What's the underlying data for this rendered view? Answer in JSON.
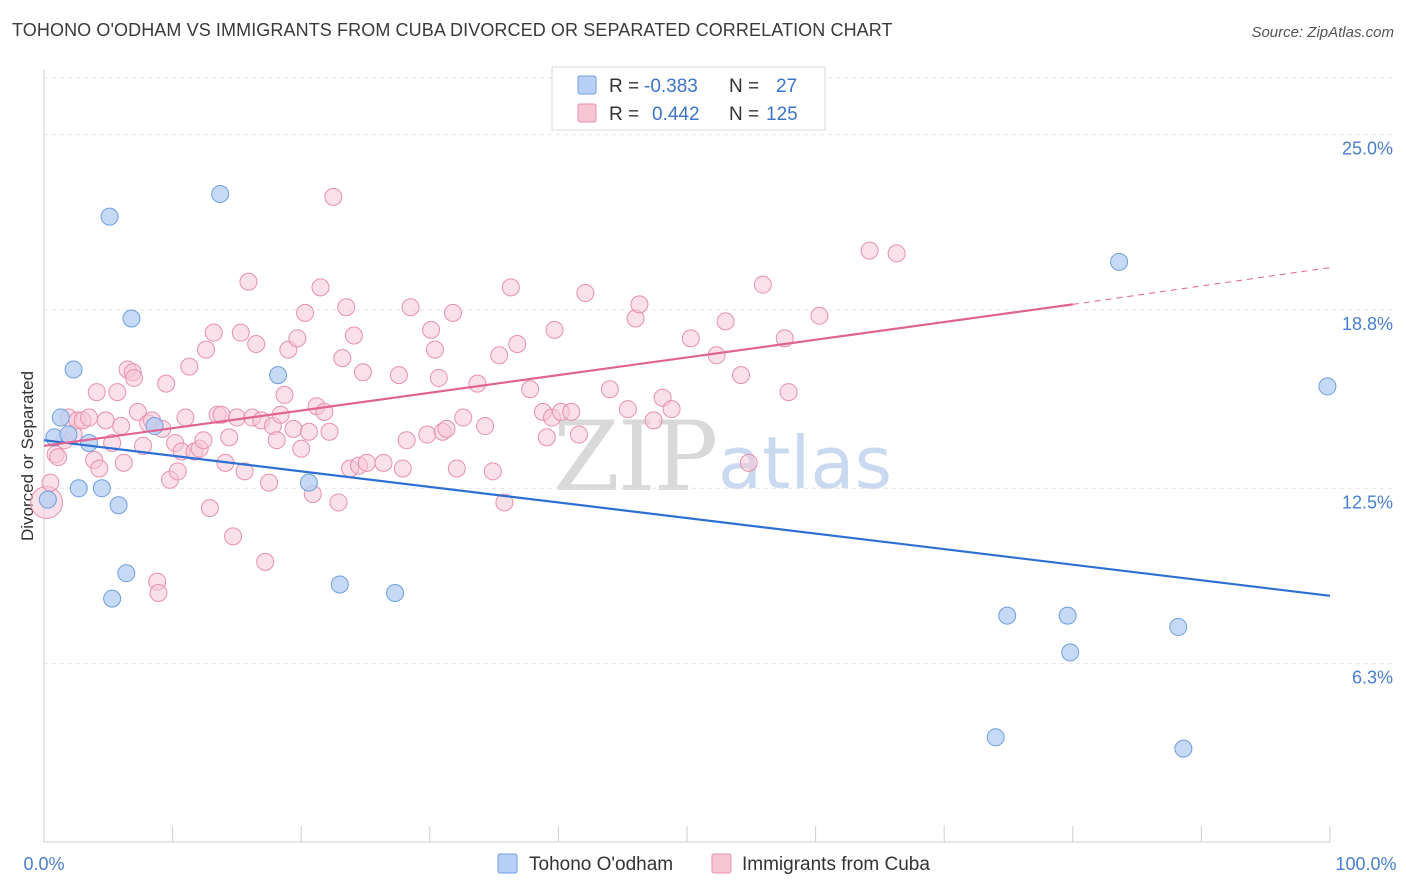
{
  "title": "TOHONO O'ODHAM VS IMMIGRANTS FROM CUBA DIVORCED OR SEPARATED CORRELATION CHART",
  "source": "Source: ZipAtlas.com",
  "watermark": {
    "zip": "ZIP",
    "atlas": "atlas"
  },
  "colors": {
    "blue": "#6f9fe0",
    "blue_fill": "#b8d0f3",
    "blue_line": "#2e6fd2",
    "pink": "#e890ad",
    "pink_fill": "#f6c6d5",
    "pink_line": "#e06492",
    "tick_text": "#4a7fd0"
  },
  "legend": {
    "rows": [
      {
        "r_label": "R =",
        "r_value": "-0.383",
        "n_label": "N =",
        "n_value": "27"
      },
      {
        "r_label": "R =",
        "r_value": "0.442",
        "n_label": "N =",
        "n_value": "125"
      }
    ]
  },
  "chart_data": {
    "type": "scatter",
    "ylabel": "Divorced or Separated",
    "xlim": [
      0,
      100
    ],
    "ylim": [
      0,
      27
    ],
    "y_ticks": [
      6.3,
      12.5,
      18.8,
      25.0
    ],
    "y_tick_labels": [
      "6.3%",
      "12.5%",
      "18.8%",
      "25.0%"
    ],
    "x_tick_labels": [
      "0.0%",
      "100.0%"
    ],
    "grid": true,
    "series": [
      {
        "name": "Tohono O'odham",
        "trend": {
          "x": [
            0,
            100
          ],
          "y": [
            14.2,
            8.7
          ]
        },
        "points": [
          [
            0.3,
            12.1
          ],
          [
            0.8,
            14.3
          ],
          [
            1.3,
            15.0
          ],
          [
            1.9,
            14.4
          ],
          [
            2.3,
            16.7
          ],
          [
            2.7,
            12.5
          ],
          [
            3.5,
            14.1
          ],
          [
            4.5,
            12.5
          ],
          [
            5.1,
            22.1
          ],
          [
            5.3,
            8.6
          ],
          [
            5.8,
            11.9
          ],
          [
            6.4,
            9.5
          ],
          [
            6.8,
            18.5
          ],
          [
            8.6,
            14.7
          ],
          [
            13.7,
            22.9
          ],
          [
            18.2,
            16.5
          ],
          [
            20.6,
            12.7
          ],
          [
            23.0,
            9.1
          ],
          [
            27.3,
            8.8
          ],
          [
            74.0,
            3.7
          ],
          [
            79.6,
            8.0
          ],
          [
            79.8,
            6.7
          ],
          [
            83.6,
            20.5
          ],
          [
            88.2,
            7.6
          ],
          [
            88.6,
            3.3
          ],
          [
            99.8,
            16.1
          ],
          [
            74.9,
            8.0
          ]
        ]
      },
      {
        "name": "Immigrants from Cuba",
        "trend": {
          "x": [
            0,
            80
          ],
          "y": [
            14.0,
            19.0
          ]
        },
        "trend_dashed": {
          "x": [
            80,
            100
          ],
          "y": [
            19.0,
            20.3
          ]
        },
        "points": [
          [
            0.2,
            12.0
          ],
          [
            0.5,
            12.7
          ],
          [
            0.9,
            13.7
          ],
          [
            1.1,
            13.6
          ],
          [
            1.6,
            14.2
          ],
          [
            1.9,
            15.0
          ],
          [
            2.3,
            14.4
          ],
          [
            2.6,
            14.9
          ],
          [
            3.0,
            14.9
          ],
          [
            3.5,
            15.0
          ],
          [
            3.9,
            13.5
          ],
          [
            4.1,
            15.9
          ],
          [
            4.3,
            13.2
          ],
          [
            4.8,
            14.9
          ],
          [
            5.3,
            14.1
          ],
          [
            5.7,
            15.9
          ],
          [
            6.0,
            14.7
          ],
          [
            6.2,
            13.4
          ],
          [
            6.5,
            16.7
          ],
          [
            6.9,
            16.6
          ],
          [
            7.0,
            16.4
          ],
          [
            7.3,
            15.2
          ],
          [
            7.7,
            14.0
          ],
          [
            8.1,
            14.8
          ],
          [
            8.4,
            14.9
          ],
          [
            8.8,
            9.2
          ],
          [
            8.9,
            8.8
          ],
          [
            9.2,
            14.6
          ],
          [
            9.5,
            16.2
          ],
          [
            9.8,
            12.8
          ],
          [
            10.2,
            14.1
          ],
          [
            10.4,
            13.1
          ],
          [
            10.7,
            13.8
          ],
          [
            11.0,
            15.0
          ],
          [
            11.3,
            16.8
          ],
          [
            11.7,
            13.8
          ],
          [
            12.1,
            13.9
          ],
          [
            12.4,
            14.2
          ],
          [
            12.6,
            17.4
          ],
          [
            12.9,
            11.8
          ],
          [
            13.2,
            18.0
          ],
          [
            13.5,
            15.1
          ],
          [
            13.8,
            15.1
          ],
          [
            14.1,
            13.4
          ],
          [
            14.4,
            14.3
          ],
          [
            14.7,
            10.8
          ],
          [
            15.0,
            15.0
          ],
          [
            15.3,
            18.0
          ],
          [
            15.6,
            13.1
          ],
          [
            15.9,
            19.8
          ],
          [
            16.2,
            15.0
          ],
          [
            16.5,
            17.6
          ],
          [
            16.9,
            14.9
          ],
          [
            17.2,
            9.9
          ],
          [
            17.5,
            12.7
          ],
          [
            17.8,
            14.7
          ],
          [
            18.1,
            14.2
          ],
          [
            18.4,
            15.1
          ],
          [
            18.7,
            15.8
          ],
          [
            19.0,
            17.4
          ],
          [
            19.4,
            14.6
          ],
          [
            19.7,
            17.8
          ],
          [
            20.0,
            13.9
          ],
          [
            20.3,
            18.7
          ],
          [
            20.6,
            14.5
          ],
          [
            20.9,
            12.3
          ],
          [
            21.2,
            15.4
          ],
          [
            21.5,
            19.6
          ],
          [
            21.8,
            15.2
          ],
          [
            22.2,
            14.5
          ],
          [
            22.5,
            22.8
          ],
          [
            22.9,
            12.0
          ],
          [
            23.2,
            17.1
          ],
          [
            23.5,
            18.9
          ],
          [
            23.8,
            13.2
          ],
          [
            24.1,
            17.9
          ],
          [
            24.5,
            13.3
          ],
          [
            24.8,
            16.6
          ],
          [
            25.1,
            13.4
          ],
          [
            26.4,
            13.4
          ],
          [
            27.6,
            16.5
          ],
          [
            27.9,
            13.2
          ],
          [
            28.2,
            14.2
          ],
          [
            28.5,
            18.9
          ],
          [
            29.8,
            14.4
          ],
          [
            30.1,
            18.1
          ],
          [
            30.4,
            17.4
          ],
          [
            30.7,
            16.4
          ],
          [
            31.0,
            14.5
          ],
          [
            31.3,
            14.6
          ],
          [
            31.8,
            18.7
          ],
          [
            32.1,
            13.2
          ],
          [
            32.6,
            15.0
          ],
          [
            33.7,
            16.2
          ],
          [
            34.3,
            14.7
          ],
          [
            34.9,
            13.1
          ],
          [
            35.4,
            17.2
          ],
          [
            35.8,
            12.0
          ],
          [
            36.3,
            19.6
          ],
          [
            36.8,
            17.6
          ],
          [
            37.8,
            16.0
          ],
          [
            38.8,
            15.2
          ],
          [
            39.1,
            14.3
          ],
          [
            39.5,
            15.0
          ],
          [
            39.7,
            18.1
          ],
          [
            40.2,
            15.2
          ],
          [
            41.0,
            15.2
          ],
          [
            41.6,
            14.4
          ],
          [
            42.1,
            19.4
          ],
          [
            44.0,
            16.0
          ],
          [
            45.4,
            15.3
          ],
          [
            46.0,
            18.5
          ],
          [
            46.3,
            19.0
          ],
          [
            47.4,
            14.9
          ],
          [
            48.1,
            15.7
          ],
          [
            48.8,
            15.3
          ],
          [
            50.3,
            17.8
          ],
          [
            52.3,
            17.2
          ],
          [
            53.0,
            18.4
          ],
          [
            54.2,
            16.5
          ],
          [
            54.8,
            13.4
          ],
          [
            55.9,
            19.7
          ],
          [
            57.6,
            17.8
          ],
          [
            57.9,
            15.9
          ],
          [
            60.3,
            18.6
          ],
          [
            64.2,
            20.9
          ],
          [
            66.3,
            20.8
          ]
        ]
      }
    ]
  },
  "bottom_legend": [
    "Tohono O'odham",
    "Immigrants from Cuba"
  ]
}
